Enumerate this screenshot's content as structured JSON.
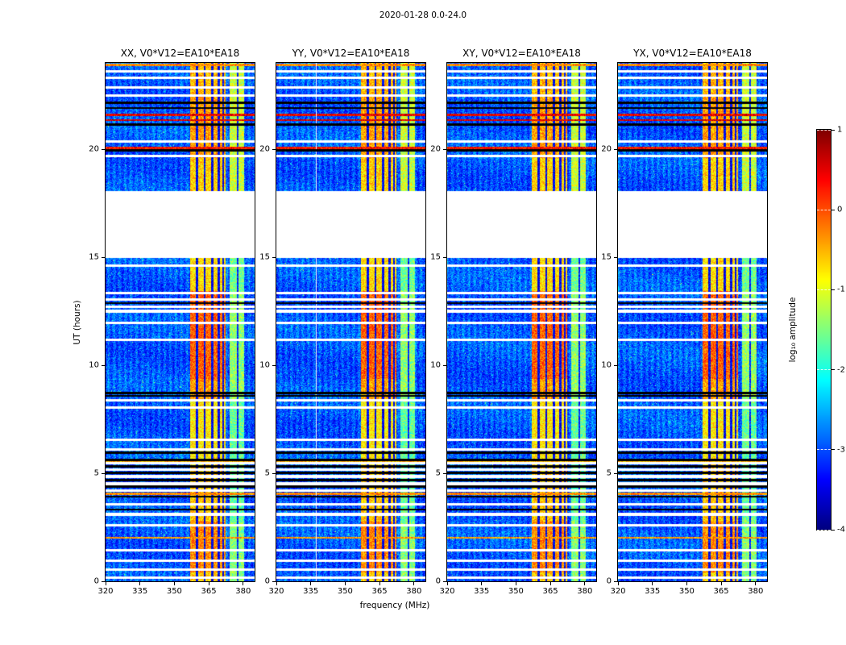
{
  "figure": {
    "title": "2020-01-28 0.0-24.0",
    "xlabel": "frequency (MHz)",
    "ylabel": "UT (hours)",
    "colorbar_label": "log₁₀ amplitude"
  },
  "chart_data": {
    "type": "heatmap",
    "title": "2020-01-28 0.0-24.0",
    "xlabel": "frequency (MHz)",
    "ylabel": "UT (hours)",
    "colormap": "jet",
    "panels": [
      {
        "title": "XX, V0*V12=EA10*EA18",
        "seed": 1
      },
      {
        "title": "YY, V0*V12=EA10*EA18",
        "seed": 2,
        "white_col": 337.3
      },
      {
        "title": "XY, V0*V12=EA10*EA18",
        "seed": 3
      },
      {
        "title": "YX, V0*V12=EA10*EA18",
        "seed": 4
      }
    ],
    "x_axis": {
      "label": "frequency (MHz)",
      "min": 320,
      "max": 385,
      "ticks": [
        320,
        335,
        350,
        365,
        380
      ]
    },
    "y_axis": {
      "label": "UT (hours)",
      "min": 0,
      "max": 24,
      "ticks": [
        0,
        5,
        10,
        15,
        20
      ]
    },
    "color_axis": {
      "label": "log₁₀ amplitude",
      "min": -4,
      "max": 1,
      "ticks": [
        1,
        0,
        -1,
        -2,
        -3,
        -4
      ]
    },
    "features": {
      "background_level": -2.95,
      "bright_band": {
        "f_min": 357.0,
        "f_max": 372.3,
        "base": -1.35,
        "range": 1.25
      },
      "secondary_band": {
        "f_min": 374.2,
        "f_max": 380.6,
        "base": -2.0,
        "range": 1.1
      },
      "notch_freqs": [
        359.9,
        363.2,
        366.5,
        369.3,
        371.3
      ],
      "secondary_notch": 377.6,
      "data_gap_hours": [
        14.98,
        18.06
      ],
      "white_rows_hours": [
        0.18,
        0.55,
        0.95,
        1.45,
        2.6,
        3.1,
        3.55,
        4.2,
        4.52,
        4.85,
        5.18,
        5.48,
        6.1,
        6.55,
        8.05,
        8.38,
        11.18,
        11.95,
        12.5,
        12.7,
        13.05,
        13.35,
        14.6,
        19.7,
        20.35,
        22.5,
        22.85,
        23.3,
        23.62
      ],
      "black_rows_hours": [
        3.32,
        3.92,
        4.38,
        4.68,
        5.02,
        5.32,
        5.62,
        5.95,
        8.58,
        8.72,
        12.88,
        19.95,
        21.15,
        21.9,
        22.15
      ],
      "bright_rows": [
        [
          2.02,
          -0.4
        ],
        [
          4.05,
          -0.3
        ],
        [
          5.5,
          -0.5
        ],
        [
          20.05,
          0.3
        ],
        [
          21.35,
          0.55
        ],
        [
          21.6,
          0.45
        ],
        [
          23.9,
          -0.3
        ]
      ],
      "band_intensity": [
        [
          0,
          0.4,
          0.55
        ],
        [
          0.4,
          2.75,
          0.85
        ],
        [
          2.75,
          5.35,
          0.6
        ],
        [
          5.35,
          8.45,
          0.45
        ],
        [
          8.45,
          9.35,
          0.75
        ],
        [
          9.35,
          13.45,
          1.0
        ],
        [
          13.45,
          15.0,
          0.5
        ],
        [
          18.05,
          19.6,
          0.55
        ],
        [
          19.6,
          22.45,
          0.75
        ],
        [
          22.45,
          24.01,
          0.65
        ]
      ],
      "secondary_intensity": [
        [
          0,
          2.75,
          0.5
        ],
        [
          2.75,
          8.45,
          0.35
        ],
        [
          8.45,
          13.45,
          0.55
        ],
        [
          13.45,
          15.0,
          0.4
        ],
        [
          18.05,
          24.01,
          0.8
        ]
      ]
    }
  }
}
